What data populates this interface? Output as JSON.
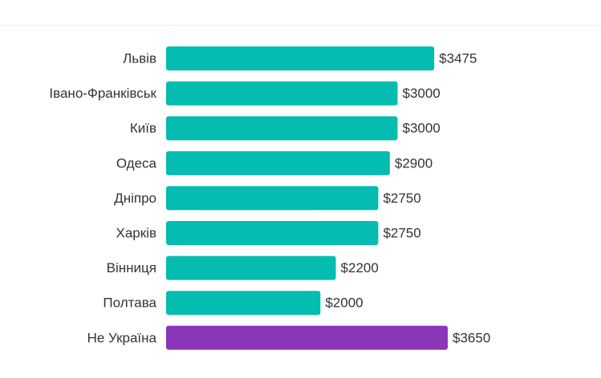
{
  "chart_data": {
    "type": "bar",
    "orientation": "horizontal",
    "categories": [
      "Львів",
      "Івано-Франківськ",
      "Київ",
      "Одеса",
      "Дніпро",
      "Харків",
      "Вінниця",
      "Полтава",
      "Не Україна"
    ],
    "values": [
      3475,
      3000,
      3000,
      2900,
      2750,
      2750,
      2200,
      2000,
      3650
    ],
    "value_labels": [
      "$3475",
      "$3000",
      "$3000",
      "$2900",
      "$2750",
      "$2750",
      "$2200",
      "$2000",
      "$3650"
    ],
    "bar_colors": [
      "#05bcb0",
      "#05bcb0",
      "#05bcb0",
      "#05bcb0",
      "#05bcb0",
      "#05bcb0",
      "#05bcb0",
      "#05bcb0",
      "#8a36b8"
    ],
    "title": "",
    "xlabel": "",
    "ylabel": "",
    "xlim": [
      0,
      3650
    ],
    "grid": false,
    "legend": false
  },
  "colors": {
    "primary_bar": "#05bcb0",
    "highlight_bar": "#8a36b8",
    "text": "#333333",
    "divider": "#ececec"
  }
}
